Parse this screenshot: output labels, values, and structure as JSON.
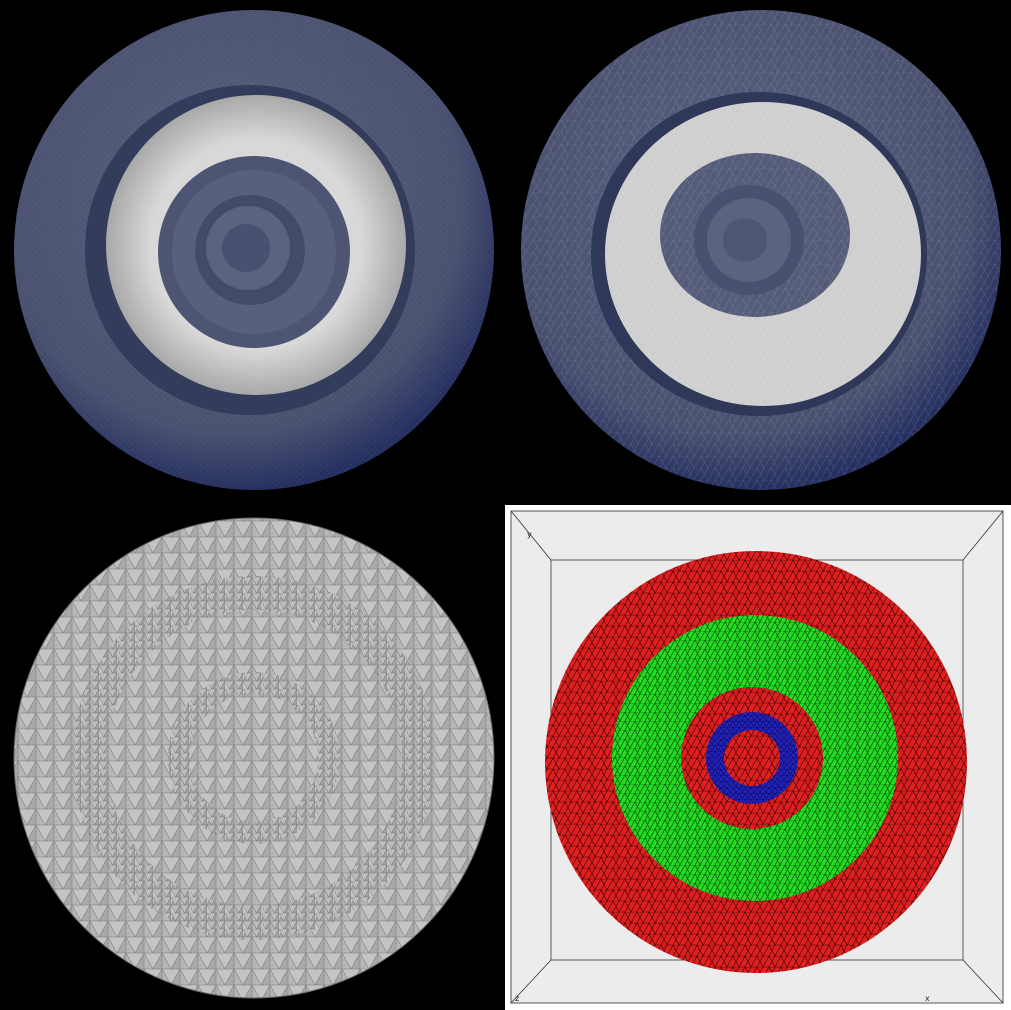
{
  "panels": [
    {
      "id": "top-left",
      "style": "smooth translucent surface mesh"
    },
    {
      "id": "top-right",
      "style": "coarse translucent surface mesh"
    },
    {
      "id": "bottom-left",
      "style": "grey tetrahedral mesh cross-section"
    },
    {
      "id": "bottom-right",
      "style": "colored region mesh in 3D bounding box"
    }
  ],
  "colors": {
    "background": "#000000",
    "surface_blue": "#4a5170",
    "surface_rim": "#26305a",
    "inner_light": "#c9c9c9",
    "mesh_grey": "#b8b8b8",
    "region_red": "#e02020",
    "region_green": "#22dd22",
    "region_blue": "#2222bb",
    "viewport_bg": "#ececec"
  },
  "axes": {
    "y": "y",
    "z": "z",
    "x": "x"
  }
}
